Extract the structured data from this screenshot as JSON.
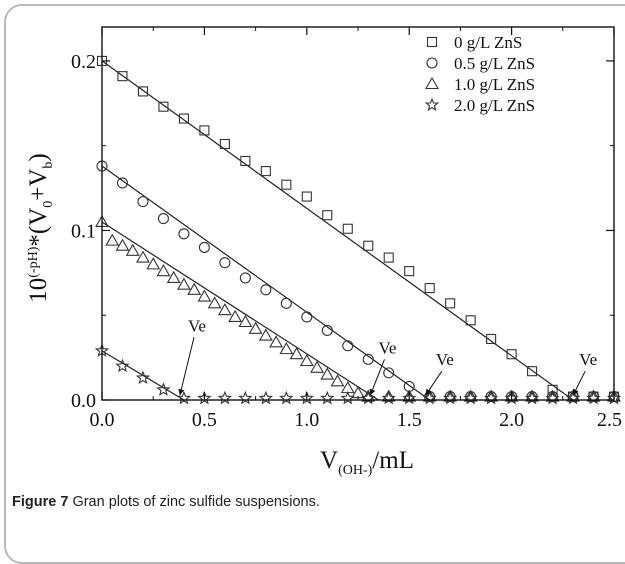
{
  "caption": {
    "label": "Figure 7",
    "text": "Gran plots of zinc sulfide suspensions."
  },
  "chart_data": {
    "type": "scatter",
    "title": "",
    "xlabel": {
      "main": "V",
      "sub": "(OH-)",
      "suffix": "/mL"
    },
    "ylabel": {
      "base": "10",
      "sup": "(-pH)",
      "mid": "*(V",
      "sub0": "0",
      "plus": "+V",
      "subb": "b",
      "close": ")"
    },
    "xlim": [
      0,
      2.5
    ],
    "ylim": [
      0,
      0.22
    ],
    "x_ticks": [
      "0.0",
      "0.5",
      "1.0",
      "1.5",
      "2.0",
      "2.5"
    ],
    "y_ticks": [
      "0.0",
      "0.1",
      "0.2"
    ],
    "grid": false,
    "legend_position": "top-right",
    "series": [
      {
        "name": "0 g/L ZnS",
        "marker": "square",
        "x": [
          0.0,
          0.1,
          0.2,
          0.3,
          0.4,
          0.5,
          0.6,
          0.7,
          0.8,
          0.9,
          1.0,
          1.1,
          1.2,
          1.3,
          1.4,
          1.5,
          1.6,
          1.7,
          1.8,
          1.9,
          2.0,
          2.1,
          2.2,
          2.3,
          2.4,
          2.5
        ],
        "y": [
          0.2,
          0.191,
          0.182,
          0.173,
          0.166,
          0.159,
          0.151,
          0.141,
          0.135,
          0.127,
          0.12,
          0.109,
          0.101,
          0.091,
          0.084,
          0.076,
          0.066,
          0.057,
          0.047,
          0.036,
          0.027,
          0.017,
          0.006,
          0.002,
          0.002,
          0.002
        ],
        "fit": {
          "x": [
            0.0,
            2.3
          ],
          "y": [
            0.2,
            0.0
          ]
        }
      },
      {
        "name": "0.5 g/L ZnS",
        "marker": "circle",
        "x": [
          0.0,
          0.1,
          0.2,
          0.3,
          0.4,
          0.5,
          0.6,
          0.7,
          0.8,
          0.9,
          1.0,
          1.1,
          1.2,
          1.3,
          1.4,
          1.5,
          1.6,
          1.7,
          1.8,
          1.9,
          2.0,
          2.1,
          2.2,
          2.3,
          2.4,
          2.5
        ],
        "y": [
          0.138,
          0.128,
          0.117,
          0.107,
          0.098,
          0.09,
          0.081,
          0.072,
          0.065,
          0.057,
          0.049,
          0.041,
          0.032,
          0.024,
          0.016,
          0.008,
          0.002,
          0.002,
          0.002,
          0.002,
          0.002,
          0.002,
          0.002,
          0.002,
          0.002,
          0.002
        ],
        "fit": {
          "x": [
            0.0,
            1.6
          ],
          "y": [
            0.138,
            0.0
          ]
        }
      },
      {
        "name": "1.0 g/L ZnS",
        "marker": "triangle",
        "x": [
          0.0,
          0.05,
          0.1,
          0.15,
          0.2,
          0.25,
          0.3,
          0.35,
          0.4,
          0.45,
          0.5,
          0.55,
          0.6,
          0.65,
          0.7,
          0.75,
          0.8,
          0.85,
          0.9,
          0.95,
          1.0,
          1.05,
          1.1,
          1.15,
          1.2,
          1.25,
          1.3,
          1.4,
          1.5,
          1.6,
          1.7,
          1.8,
          1.9,
          2.0,
          2.1,
          2.2,
          2.3,
          2.4,
          2.5
        ],
        "y": [
          0.105,
          0.094,
          0.091,
          0.088,
          0.084,
          0.08,
          0.076,
          0.072,
          0.068,
          0.065,
          0.061,
          0.057,
          0.053,
          0.049,
          0.046,
          0.042,
          0.038,
          0.034,
          0.03,
          0.027,
          0.023,
          0.019,
          0.015,
          0.011,
          0.007,
          0.004,
          0.002,
          0.002,
          0.002,
          0.002,
          0.002,
          0.002,
          0.002,
          0.002,
          0.002,
          0.002,
          0.002,
          0.002,
          0.002
        ],
        "fit": {
          "x": [
            0.0,
            1.35
          ],
          "y": [
            0.105,
            0.0
          ]
        }
      },
      {
        "name": "2.0 g/L ZnS",
        "marker": "star",
        "x": [
          0.0,
          0.1,
          0.2,
          0.3,
          0.4,
          0.5,
          0.6,
          0.7,
          0.8,
          0.9,
          1.0,
          1.1,
          1.2,
          1.3,
          1.4,
          1.5,
          1.6,
          1.7,
          1.8,
          1.9,
          2.0,
          2.1,
          2.2,
          2.3,
          2.4,
          2.5
        ],
        "y": [
          0.029,
          0.02,
          0.013,
          0.006,
          0.001,
          0.001,
          0.001,
          0.001,
          0.001,
          0.001,
          0.001,
          0.001,
          0.001,
          0.001,
          0.001,
          0.001,
          0.001,
          0.001,
          0.001,
          0.001,
          0.001,
          0.001,
          0.001,
          0.001,
          0.001,
          0.001
        ],
        "fit": {
          "x": [
            0.0,
            0.4
          ],
          "y": [
            0.029,
            0.0
          ]
        }
      }
    ],
    "annotations": [
      {
        "text": "Ve",
        "label_at": [
          0.42,
          0.037
        ],
        "arrow_to": [
          0.38,
          0.001
        ]
      },
      {
        "text": "Ve",
        "label_at": [
          1.35,
          0.024
        ],
        "arrow_to": [
          1.31,
          0.001
        ]
      },
      {
        "text": "Ve",
        "label_at": [
          1.63,
          0.017
        ],
        "arrow_to": [
          1.58,
          0.001
        ]
      },
      {
        "text": "Ve",
        "label_at": [
          2.33,
          0.017
        ],
        "arrow_to": [
          2.3,
          0.001
        ]
      }
    ]
  }
}
